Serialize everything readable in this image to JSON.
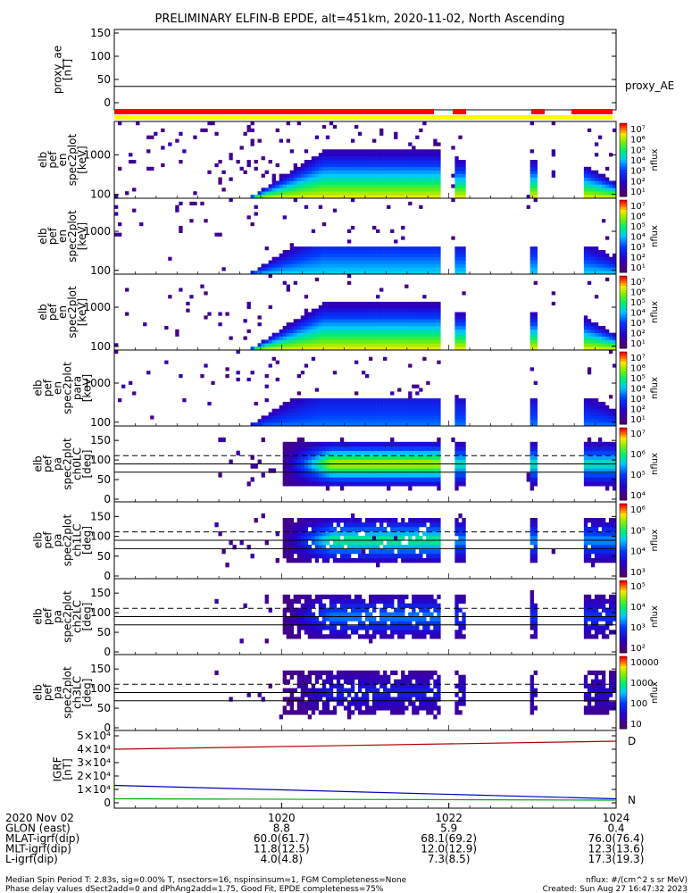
{
  "title": "PRELIMINARY ELFIN-B EPDE, alt=451km, 2020-11-02, North Ascending",
  "colors": {
    "red_bar": "#ff0000",
    "yellow_bar": "#ffff00",
    "frame": "#000000"
  },
  "panels": [
    {
      "id": "proxy_ae",
      "ylabel": [
        "proxy_ae",
        "[nT]"
      ],
      "yticks": [
        "150",
        "100",
        "50",
        "0"
      ],
      "right_label": "proxy_AE"
    },
    {
      "id": "en_sp",
      "ylabel": [
        "elb",
        "pef",
        "en",
        "spec2plot",
        "[keV]"
      ],
      "yticks": [
        "1000",
        "100"
      ],
      "cbar_label": "nflux",
      "cbar_ticks": [
        "10⁷",
        "10⁶",
        "10⁵",
        "10⁴",
        "10³",
        "10²",
        "10¹"
      ]
    },
    {
      "id": "en_perp",
      "ylabel": [
        "elb",
        "pef",
        "en",
        "spec2plot",
        "[keV]"
      ],
      "yticks": [
        "1000",
        "100"
      ],
      "cbar_label": "nflux",
      "cbar_ticks": [
        "10⁷",
        "10⁶",
        "10⁵",
        "10⁴",
        "10³",
        "10²",
        "10¹"
      ]
    },
    {
      "id": "en_para",
      "ylabel": [
        "elb",
        "pef",
        "en",
        "spec2plot",
        "[keV]"
      ],
      "yticks": [
        "1000",
        "100"
      ],
      "cbar_label": "nflux",
      "cbar_ticks": [
        "10⁷",
        "10⁶",
        "10⁵",
        "10⁴",
        "10³",
        "10²",
        "10¹"
      ]
    },
    {
      "id": "en_anti",
      "ylabel": [
        "elb",
        "pef",
        "en",
        "spec2plot",
        "para",
        "[keV]"
      ],
      "yticks": [
        "1000",
        "100"
      ],
      "cbar_label": "nflux",
      "cbar_ticks": [
        "10⁷",
        "10⁶",
        "10⁵",
        "10⁴",
        "10³",
        "10²",
        "10¹"
      ]
    },
    {
      "id": "pa_ch0",
      "ylabel": [
        "elb",
        "pef",
        "pa",
        "spec2plot",
        "ch0LC",
        "[deg]"
      ],
      "yticks": [
        "150",
        "100",
        "50",
        "0"
      ],
      "cbar_label": "nflux",
      "cbar_ticks": [
        "10⁷",
        "10⁶",
        "10⁵",
        "10⁴"
      ]
    },
    {
      "id": "pa_ch1",
      "ylabel": [
        "elb",
        "pef",
        "pa",
        "spec2plot",
        "ch1LC",
        "[deg]"
      ],
      "yticks": [
        "150",
        "100",
        "50",
        "0"
      ],
      "cbar_label": "nflux",
      "cbar_ticks": [
        "10⁶",
        "10⁵",
        "10⁴",
        "10³"
      ]
    },
    {
      "id": "pa_ch2",
      "ylabel": [
        "elb",
        "pef",
        "pa",
        "spec2plot",
        "ch2LC",
        "[deg]"
      ],
      "yticks": [
        "150",
        "100",
        "50",
        "0"
      ],
      "cbar_label": "nflux",
      "cbar_ticks": [
        "10⁵",
        "10⁴",
        "10³",
        "10²"
      ]
    },
    {
      "id": "pa_ch3",
      "ylabel": [
        "elb",
        "pef",
        "pa",
        "spec2plot",
        "ch3LC",
        "[deg]"
      ],
      "yticks": [
        "150",
        "100",
        "50",
        "0"
      ],
      "cbar_label": "nflux",
      "cbar_ticks": [
        "10000",
        "1000",
        "100",
        "10"
      ]
    },
    {
      "id": "igrf",
      "ylabel": [
        "IGRF",
        "[nT]"
      ],
      "yticks": [
        "5×10⁴",
        "4×10⁴",
        "3×10⁴",
        "2×10⁴",
        "1×10⁴",
        "0"
      ],
      "right_labels": [
        "D",
        "N"
      ]
    }
  ],
  "xaxis": {
    "labels": [
      "1020",
      "1022",
      "1024"
    ],
    "rows": [
      {
        "name": "2020 Nov 02",
        "values": [
          "1020",
          "1022",
          "1024"
        ]
      },
      {
        "name": "GLON (east)",
        "values": [
          "8.8",
          "5.9",
          "0.4"
        ]
      },
      {
        "name": "MLAT-igrf(dip)",
        "values": [
          "60.0(61.7)",
          "68.1(69.2)",
          "76.0(76.4)"
        ]
      },
      {
        "name": "MLT-igrf(dip)",
        "values": [
          "11.8(12.5)",
          "12.0(12.9)",
          "12.3(13.6)"
        ]
      },
      {
        "name": "L-igrf(dip)",
        "values": [
          "4.0(4.8)",
          "7.3(8.5)",
          "17.3(19.3)"
        ]
      }
    ]
  },
  "footer": {
    "line1_left": "Median Spin Period T: 2.83s, sig=0.00% T, nsectors=16, nspinsinsum=1, FGM Completeness=None",
    "line2_left": "Phase delay values dSect2add=0 and dPhAng2add=1.75, Good Fit, EPDE completeness=75%",
    "line1_right": "nflux: #/(cm^2 s sr MeV)",
    "line2_right": "Created: Sun Aug 27 16:47:32 2023"
  },
  "chart_data": [
    {
      "type": "line",
      "panel": "proxy_ae",
      "series": [
        {
          "values": [
            35,
            35
          ]
        }
      ],
      "ylim": [
        0,
        150
      ]
    },
    {
      "type": "heatmap",
      "panel": "energy_spectrograms",
      "ylim": [
        80,
        7000
      ],
      "yscale": "log",
      "xlim": [
        1018,
        1024
      ]
    },
    {
      "type": "heatmap",
      "panel": "pitch_angle_spectrograms",
      "ylim": [
        0,
        180
      ],
      "xlim": [
        1018,
        1024
      ]
    },
    {
      "type": "line",
      "panel": "igrf",
      "x": [
        1018,
        1024
      ],
      "series": [
        {
          "values": [
            40000,
            46000
          ]
        },
        {
          "values": [
            13000,
            3000
          ]
        },
        {
          "values": [
            3000,
            2000
          ]
        }
      ],
      "ylim": [
        0,
        50000
      ]
    }
  ]
}
